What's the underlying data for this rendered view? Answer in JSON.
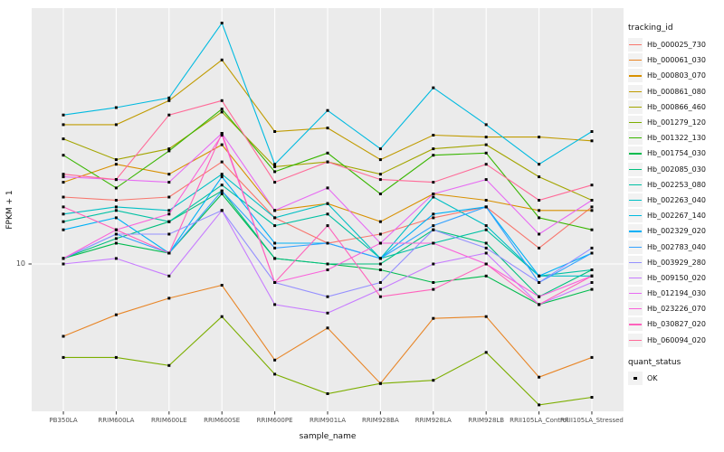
{
  "figure": {
    "y_tick_label": "10",
    "style": {
      "panel_bg": "#EBEBEB",
      "grid_color": "#FFFFFF",
      "tick_color": "#333333",
      "tick_text_color": "#4D4D4D",
      "point_color": "#000000",
      "legend_key_bg": "#F2F2F2"
    }
  },
  "chart_data": {
    "type": "line",
    "title": "",
    "xlabel": "sample_name",
    "ylabel": "FPKM + 1",
    "y_scale": "log10",
    "y_breaks": [
      10
    ],
    "y_break_labels": [
      "10"
    ],
    "grid": true,
    "legend_position": "right",
    "legend_title": "tracking_id",
    "point_legend": {
      "title": "quant_status",
      "label": "OK",
      "shape": "black-square"
    },
    "categories": [
      "PB350LA",
      "RRIM600LA",
      "RRIM600LE",
      "RRIM600SE",
      "RRIM600PE",
      "RRIM901LA",
      "RRIM928BA",
      "RRIM928LA",
      "RRIM928LB",
      "RRII105LA_Control",
      "RRII105LA_Stressed"
    ],
    "series": [
      {
        "name": "Hb_000025_730",
        "color": "#F8766D",
        "values": [
          18,
          17.5,
          18,
          24.5,
          15,
          12,
          13,
          15,
          16.5,
          11.5,
          16.5
        ]
      },
      {
        "name": "Hb_000061_030",
        "color": "#E88526",
        "values": [
          5.3,
          6.4,
          7.4,
          8.3,
          4.3,
          5.7,
          3.5,
          6.2,
          6.3,
          3.7,
          4.4
        ]
      },
      {
        "name": "Hb_000803_070",
        "color": "#D89000",
        "values": [
          20.5,
          24,
          22,
          28.5,
          16,
          17,
          14.5,
          18.5,
          17.5,
          16,
          16
        ]
      },
      {
        "name": "Hb_000861_080",
        "color": "#C09B00",
        "values": [
          34,
          34,
          42,
          60,
          32,
          33,
          25,
          31,
          30.5,
          30.5,
          29.5
        ]
      },
      {
        "name": "Hb_000866_460",
        "color": "#A3A500",
        "values": [
          30,
          25,
          27.5,
          38,
          23.5,
          24.5,
          22,
          27.5,
          28.5,
          21.5,
          17.5
        ]
      },
      {
        "name": "Hb_001279_120",
        "color": "#7CAE00",
        "values": [
          4.4,
          4.4,
          4.1,
          6.3,
          3.8,
          3.2,
          3.5,
          3.6,
          4.6,
          2.9,
          3.1
        ]
      },
      {
        "name": "Hb_001322_130",
        "color": "#39B600",
        "values": [
          26,
          19.5,
          27,
          39,
          22.5,
          26.5,
          18.5,
          26,
          26.5,
          15,
          13.5
        ]
      },
      {
        "name": "Hb_001754_030",
        "color": "#00BB4E",
        "values": [
          10.5,
          12,
          11,
          18.5,
          10.5,
          10,
          9.5,
          8.5,
          9,
          7,
          8
        ]
      },
      {
        "name": "Hb_002085_030",
        "color": "#00BF7D",
        "values": [
          10.5,
          12.5,
          14.5,
          19,
          10.5,
          10,
          10,
          13.5,
          12,
          7.5,
          9.5
        ]
      },
      {
        "name": "Hb_002253_080",
        "color": "#00C1A3",
        "values": [
          14.5,
          16,
          14.5,
          20,
          14,
          15.5,
          10.5,
          12,
          13.5,
          9,
          9.5
        ]
      },
      {
        "name": "Hb_002263_040",
        "color": "#00BFC4",
        "values": [
          15.5,
          16.5,
          16,
          22,
          15,
          17,
          10.5,
          18,
          14,
          9,
          9
        ]
      },
      {
        "name": "Hb_002267_140",
        "color": "#00BAE0",
        "values": [
          37,
          39.5,
          43,
          83,
          24,
          38.5,
          27.5,
          47,
          34,
          24,
          32
        ]
      },
      {
        "name": "Hb_002329_020",
        "color": "#00B0F6",
        "values": [
          13.5,
          15,
          11,
          21.5,
          12,
          12,
          10.5,
          15.5,
          16.5,
          9,
          11
        ]
      },
      {
        "name": "Hb_002783_040",
        "color": "#35A2FF",
        "values": [
          10.5,
          13,
          11,
          19,
          11.5,
          12,
          10.5,
          14,
          16.5,
          8.5,
          11
        ]
      },
      {
        "name": "Hb_003929_280",
        "color": "#9590FF",
        "values": [
          10.5,
          13,
          13,
          16,
          8.5,
          7.5,
          8.5,
          13.5,
          11.5,
          8.5,
          11.5
        ]
      },
      {
        "name": "Hb_009150_020",
        "color": "#C77CFF",
        "values": [
          10,
          10.5,
          9,
          16,
          7,
          6.5,
          8,
          10,
          11,
          7,
          8.5
        ]
      },
      {
        "name": "Hb_012194_030",
        "color": "#E76BF3",
        "values": [
          21.5,
          21,
          20.5,
          31.5,
          16,
          19.5,
          12,
          18.5,
          21,
          13,
          17.5
        ]
      },
      {
        "name": "Hb_023226_070",
        "color": "#FA62DB",
        "values": [
          10.5,
          13.5,
          15.5,
          31,
          8.5,
          9.5,
          12,
          12,
          10,
          7.5,
          9
        ]
      },
      {
        "name": "Hb_030827_020",
        "color": "#FF62BC",
        "values": [
          16.5,
          13.5,
          11,
          31.5,
          8.5,
          14,
          7.5,
          8,
          10,
          7,
          9
        ]
      },
      {
        "name": "Hb_060094_020",
        "color": "#FF6A98",
        "values": [
          22,
          21,
          37,
          42,
          20.5,
          24.5,
          21,
          20.5,
          24,
          17.5,
          20
        ]
      }
    ]
  }
}
